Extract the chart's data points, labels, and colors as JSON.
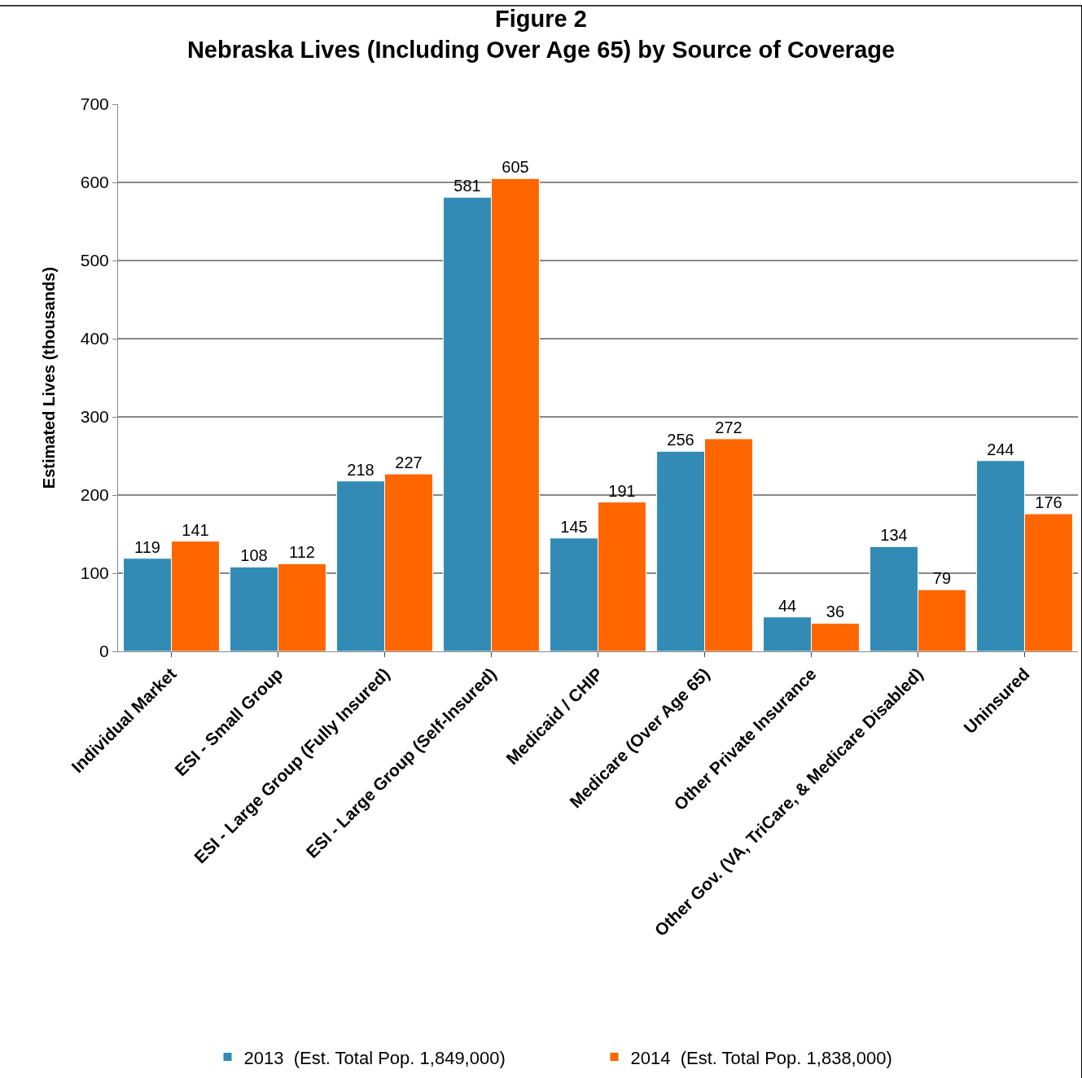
{
  "chart_data": {
    "type": "bar",
    "title": "Figure 2\nNebraska Lives (Including Over Age 65) by Source of Coverage",
    "ylabel": "Estimated Lives (thousands)",
    "categories": [
      "Individual Market",
      "ESI - Small Group",
      "ESI - Large Group (Fully Insured)",
      "ESI - Large Group (Self-Insured)",
      "Medicaid / CHIP",
      "Medicare (Over Age 65)",
      "Other Private Insurance",
      "Other Gov. (VA, TriCare, & Medicare Disabled)",
      "Uninsured"
    ],
    "series": [
      {
        "name": "2013  (Est. Total Pop. 1,849,000)",
        "color": "#318bb5",
        "values": [
          119,
          108,
          218,
          581,
          145,
          256,
          44,
          134,
          244
        ]
      },
      {
        "name": "2014  (Est. Total Pop. 1,838,000)",
        "color": "#ff6600",
        "values": [
          141,
          112,
          227,
          605,
          191,
          272,
          36,
          79,
          176
        ]
      }
    ],
    "ylim": [
      0,
      700
    ],
    "yticks": [
      0,
      100,
      200,
      300,
      400,
      500,
      600,
      700
    ],
    "grid": "y",
    "legend": "bottom",
    "data_labels": true
  }
}
